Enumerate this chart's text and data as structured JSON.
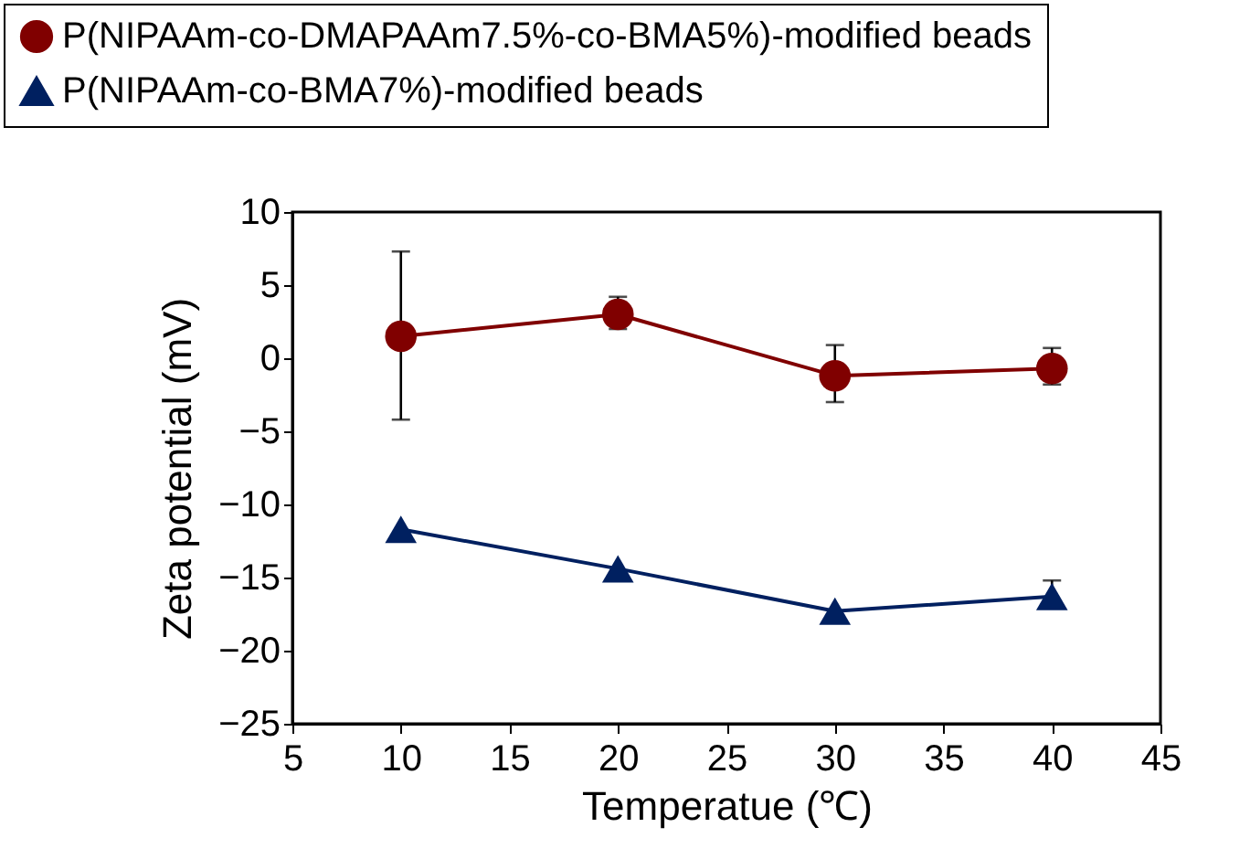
{
  "chart_data": {
    "type": "line",
    "xlabel": "Temperatue (℃)",
    "ylabel": "Zeta potential (mV)",
    "x": [
      10,
      20,
      30,
      40
    ],
    "series": [
      {
        "name": "P(NIPAAm-co-DMAPAAm7.5%-co-BMA5%)-modified beads",
        "color": "#800000",
        "marker": "circle",
        "values": [
          1.5,
          3.0,
          -1.2,
          -0.7
        ],
        "errors": [
          [
            -4.2,
            7.3
          ],
          [
            2.0,
            4.2
          ],
          [
            -3.0,
            0.9
          ],
          [
            -1.8,
            0.7
          ]
        ]
      },
      {
        "name": "P(NIPAAm-co-BMA7%)-modified beads",
        "color": "#002060",
        "marker": "triangle",
        "values": [
          -11.7,
          -14.4,
          -17.3,
          -16.3
        ],
        "errors": [
          null,
          null,
          null,
          [
            -16.9,
            -15.2
          ]
        ]
      }
    ],
    "xlim": [
      5,
      45
    ],
    "xticks": [
      5,
      10,
      15,
      20,
      25,
      30,
      35,
      40,
      45
    ],
    "ylim": [
      -25,
      10
    ],
    "yticks": [
      -25,
      -20,
      -15,
      -10,
      -5,
      0,
      5,
      10
    ],
    "grid": false,
    "legend": "top",
    "line_style": "solid"
  }
}
